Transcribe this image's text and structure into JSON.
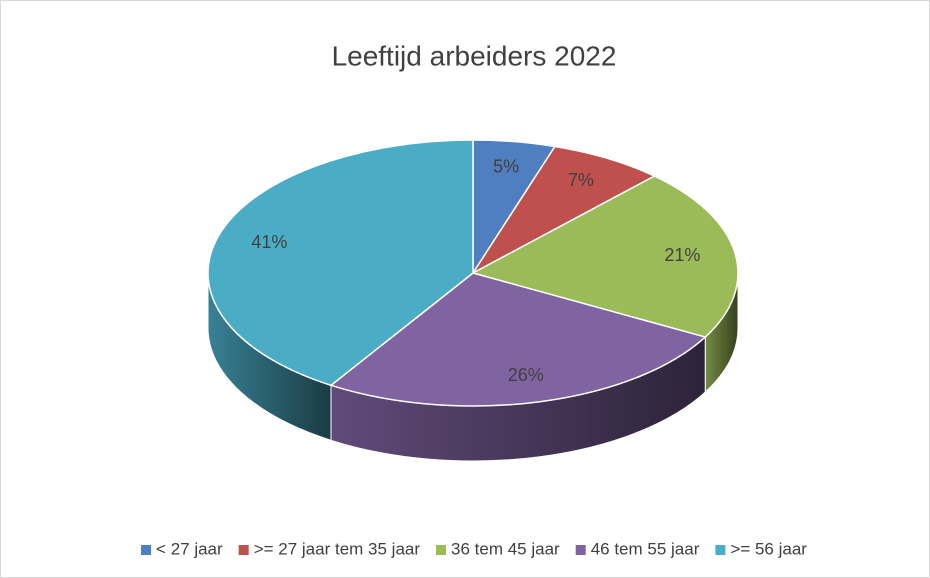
{
  "chart_data": {
    "type": "pie",
    "title": "Leeftijd arbeiders 2022",
    "categories": [
      "< 27 jaar",
      ">= 27 jaar tem 35 jaar",
      "36 tem 45 jaar",
      "46 tem 55 jaar",
      ">= 56 jaar"
    ],
    "values": [
      5,
      7,
      21,
      26,
      41
    ],
    "value_labels": [
      "5%",
      "7%",
      "21%",
      "26%",
      "41%"
    ],
    "colors": [
      "#4f7fc0",
      "#c0504d",
      "#9bbb59",
      "#8064a2",
      "#4bacc6"
    ],
    "legend": "bottom"
  }
}
